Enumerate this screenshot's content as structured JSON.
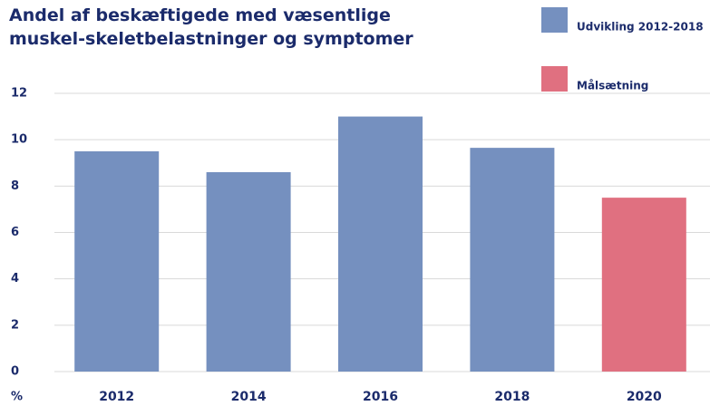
{
  "chart_data": {
    "type": "bar",
    "title": "Andel af beskæftigede med væsentlige muskel-skeletbelastninger og symptomer",
    "y_label": "%",
    "categories": [
      "2012",
      "2014",
      "2016",
      "2018",
      "2020"
    ],
    "series": [
      {
        "name": "Udvikling 2012-2018",
        "color": "#7590bf",
        "values": [
          9.5,
          8.6,
          11.0,
          9.65,
          null
        ]
      },
      {
        "name": "Målsætning",
        "color": "#e07080",
        "values": [
          null,
          null,
          null,
          null,
          7.5
        ]
      }
    ],
    "ylim": [
      0,
      12
    ],
    "yticks": [
      0,
      2,
      4,
      6,
      8,
      10,
      12
    ],
    "grid": true,
    "legend": "top-right"
  }
}
